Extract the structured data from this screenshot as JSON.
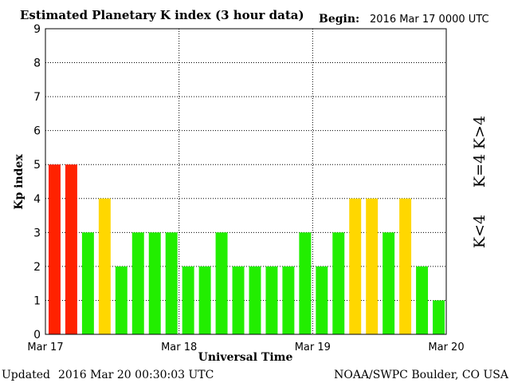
{
  "header": {
    "title": "Estimated Planetary K index (3 hour data)",
    "begin_label": "Begin:",
    "begin_value": "2016 Mar 17 0000 UTC"
  },
  "footer": {
    "updated_label": "Updated",
    "updated_value": "2016 Mar 20 00:30:03 UTC",
    "source": "NOAA/SWPC Boulder, CO USA"
  },
  "legend": {
    "high": "K>4",
    "mid": "K=4",
    "low": "K<4"
  },
  "colors": {
    "high": "#ff2200",
    "mid": "#ffd700",
    "low": "#22ee00",
    "grid": "#000000"
  },
  "chart_data": {
    "type": "bar",
    "title": "Estimated Planetary K index (3 hour data)",
    "xlabel": "Universal Time",
    "ylabel": "Kp index",
    "ylim": [
      0,
      9
    ],
    "yticks": [
      "0",
      "1",
      "2",
      "3",
      "4",
      "5",
      "6",
      "7",
      "8",
      "9"
    ],
    "xticks": [
      "Mar 17",
      "Mar 18",
      "Mar 19",
      "Mar 20"
    ],
    "grid": true,
    "values": [
      5,
      5,
      3,
      4,
      2,
      3,
      3,
      3,
      2,
      2,
      3,
      2,
      2,
      2,
      2,
      3,
      2,
      3,
      4,
      4,
      3,
      4,
      2,
      1
    ],
    "interval_hours": 3
  }
}
